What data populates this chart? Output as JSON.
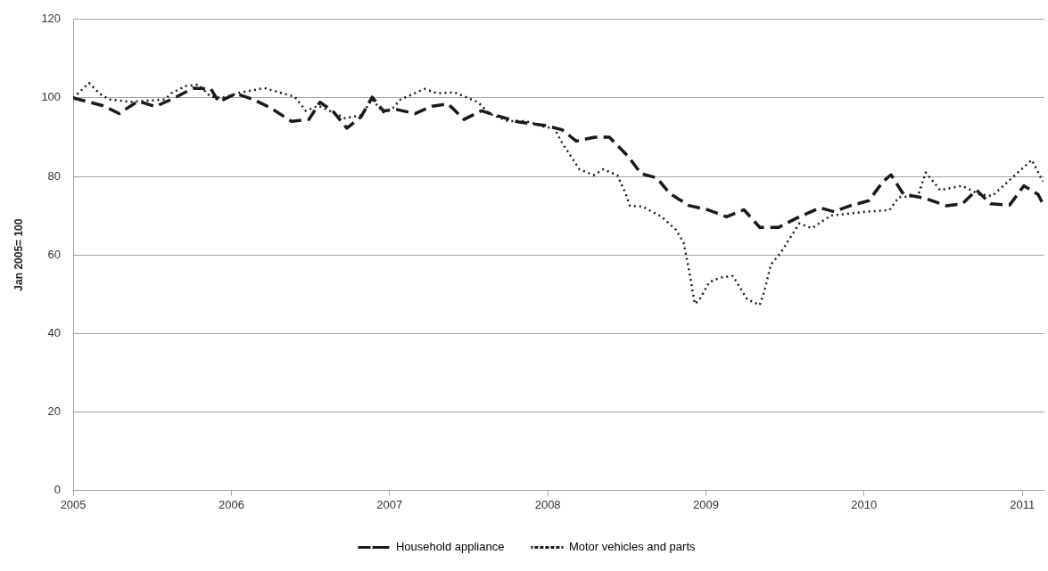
{
  "chart_data": {
    "type": "line",
    "ylabel": "Jan 2005= 100",
    "xlim": [
      2005,
      2011.14
    ],
    "xticks": [
      2005,
      2006,
      2007,
      2008,
      2009,
      2010,
      2011
    ],
    "ylim": [
      0,
      120
    ],
    "yticks": [
      0,
      20,
      40,
      60,
      80,
      100,
      120
    ],
    "grid": "y",
    "legend": "bottom",
    "marker": "none",
    "series": [
      {
        "name": "Household appliance",
        "color": "#1a1a1a",
        "line_style": "dashed",
        "x": [
          2005.0,
          2005.19,
          2005.29,
          2005.41,
          2005.52,
          2005.64,
          2005.76,
          2005.87,
          2005.92,
          2006.03,
          2006.14,
          2006.25,
          2006.38,
          2006.49,
          2006.56,
          2006.64,
          2006.73,
          2006.82,
          2006.89,
          2006.96,
          2007.05,
          2007.16,
          2007.27,
          2007.37,
          2007.47,
          2007.58,
          2007.67,
          2007.81,
          2007.98,
          2008.09,
          2008.18,
          2008.3,
          2008.39,
          2008.51,
          2008.59,
          2008.69,
          2008.77,
          2008.89,
          2009.01,
          2009.13,
          2009.24,
          2009.34,
          2009.46,
          2009.57,
          2009.72,
          2009.81,
          2009.91,
          2010.03,
          2010.12,
          2010.17,
          2010.25,
          2010.38,
          2010.52,
          2010.62,
          2010.71,
          2010.8,
          2010.92,
          2011.01,
          2011.1,
          2011.13
        ],
        "values": [
          100,
          98,
          96,
          99.2,
          97.8,
          100,
          102.5,
          102.3,
          99,
          101.1,
          99.6,
          97.4,
          94,
          94.5,
          98.9,
          96.7,
          92.3,
          95.2,
          100.2,
          96.7,
          97,
          96,
          97.9,
          98.5,
          94.5,
          96.7,
          95.6,
          93.9,
          93,
          91.9,
          89,
          90,
          90,
          85,
          80.7,
          79.6,
          75.7,
          72.6,
          71.5,
          69.7,
          71.5,
          67,
          67,
          69.3,
          72,
          71,
          72.5,
          73.8,
          78.7,
          80.4,
          75.4,
          74.5,
          72.5,
          73,
          76.5,
          73,
          72.7,
          77.6,
          75.4,
          73
        ]
      },
      {
        "name": "Motor vehicles and parts",
        "color": "#1a1a1a",
        "line_style": "dotted",
        "x": [
          2005.0,
          2005.1,
          2005.17,
          2005.23,
          2005.36,
          2005.58,
          2005.62,
          2005.71,
          2005.79,
          2005.87,
          2005.94,
          2006.06,
          2006.21,
          2006.32,
          2006.4,
          2006.47,
          2006.55,
          2006.62,
          2006.72,
          2006.82,
          2006.89,
          2006.96,
          2007.02,
          2007.07,
          2007.22,
          2007.3,
          2007.41,
          2007.56,
          2007.63,
          2007.75,
          2007.86,
          2007.98,
          2008.04,
          2008.09,
          2008.15,
          2008.2,
          2008.29,
          2008.35,
          2008.44,
          2008.49,
          2008.52,
          2008.6,
          2008.72,
          2008.81,
          2008.86,
          2008.89,
          2008.93,
          2008.96,
          2009.02,
          2009.09,
          2009.17,
          2009.2,
          2009.26,
          2009.34,
          2009.37,
          2009.41,
          2009.47,
          2009.53,
          2009.59,
          2009.67,
          2009.79,
          2010.01,
          2010.16,
          2010.22,
          2010.34,
          2010.39,
          2010.48,
          2010.62,
          2010.73,
          2010.81,
          2010.94,
          2011.06,
          2011.13
        ],
        "values": [
          100,
          103.8,
          101,
          99.6,
          99,
          99.6,
          101.2,
          103,
          103.4,
          100.3,
          100,
          101.4,
          102.5,
          101.2,
          100.3,
          96.7,
          98,
          96.7,
          94.8,
          95.6,
          99.6,
          96.3,
          97.4,
          99.6,
          102.3,
          101.2,
          101.4,
          98.9,
          96,
          94.1,
          94.1,
          92.6,
          92.3,
          88.6,
          84.9,
          81.8,
          80.3,
          81.8,
          80.3,
          75.8,
          72.5,
          72.3,
          69.7,
          66.4,
          63,
          56.8,
          47.5,
          48.6,
          53,
          54.2,
          54.6,
          52.7,
          48.7,
          47.2,
          50.8,
          57.5,
          60.4,
          64.2,
          68,
          66.8,
          70,
          71,
          71.4,
          74.7,
          75,
          81,
          76.5,
          77.6,
          75.4,
          75,
          79.8,
          84.2,
          78.7
        ]
      }
    ]
  }
}
